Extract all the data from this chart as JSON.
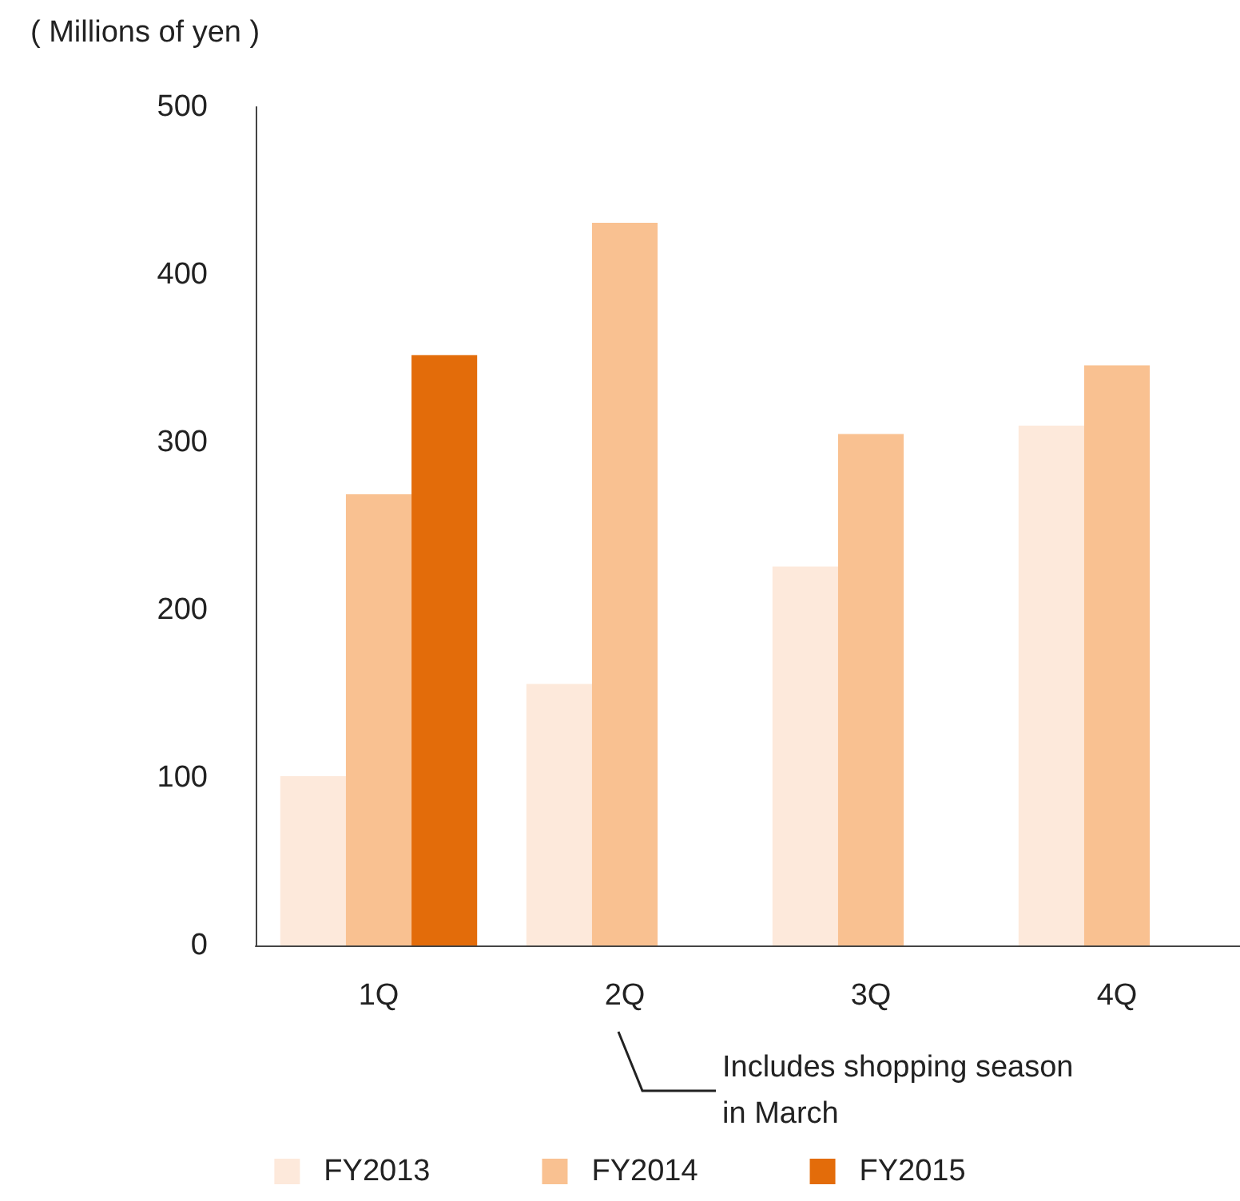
{
  "chart_data": {
    "type": "bar",
    "ylabel": "( Millions of yen )",
    "categories": [
      "1Q",
      "2Q",
      "3Q",
      "4Q"
    ],
    "series": [
      {
        "name": "FY2013",
        "color": "#fde9db",
        "values": [
          101,
          156,
          226,
          310
        ]
      },
      {
        "name": "FY2014",
        "color": "#f9c191",
        "values": [
          269,
          431,
          305,
          346
        ]
      },
      {
        "name": "FY2015",
        "color": "#e36c0a",
        "values": [
          352,
          null,
          null,
          null
        ]
      }
    ],
    "ylim": [
      0,
      500
    ],
    "yticks": [
      0,
      100,
      200,
      300,
      400,
      500
    ],
    "grid": false,
    "legend": "bottom",
    "annotations": [
      "Includes shopping season\nin March"
    ]
  }
}
